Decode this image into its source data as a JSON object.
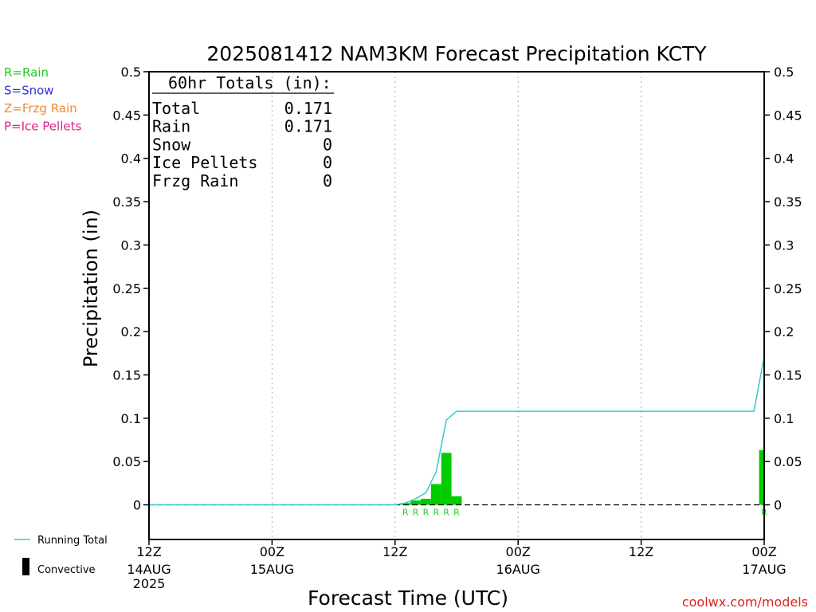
{
  "chart_data": {
    "type": "bar",
    "title": "2025081412 NAM3KM Forecast Precipitation KCTY",
    "xlabel": "Forecast Time (UTC)",
    "ylabel": "Precipitation (in)",
    "ylim": [
      -0.04,
      0.5
    ],
    "yticks": [
      0,
      0.05,
      0.1,
      0.15,
      0.2,
      0.25,
      0.3,
      0.35,
      0.4,
      0.45,
      0.5
    ],
    "ytick_labels": [
      "0",
      "0.05",
      "0.1",
      "0.15",
      "0.2",
      "0.25",
      "0.3",
      "0.35",
      "0.4",
      "0.45",
      "0.5"
    ],
    "xlim": [
      0,
      60
    ],
    "x_unit": "forecast hour",
    "xticks": [
      {
        "hour": 0,
        "line1": "12Z",
        "line2": "14AUG",
        "line3": "2025"
      },
      {
        "hour": 12,
        "line1": "00Z",
        "line2": "15AUG",
        "line3": ""
      },
      {
        "hour": 24,
        "line1": "12Z",
        "line2": "",
        "line3": ""
      },
      {
        "hour": 36,
        "line1": "00Z",
        "line2": "16AUG",
        "line3": ""
      },
      {
        "hour": 48,
        "line1": "12Z",
        "line2": "",
        "line3": ""
      },
      {
        "hour": 60,
        "line1": "00Z",
        "line2": "17AUG",
        "line3": ""
      }
    ],
    "grid": "vertical dotted at 12-hour intervals",
    "bars": [
      {
        "hour": 25,
        "value": 0.002,
        "type": "R"
      },
      {
        "hour": 26,
        "value": 0.005,
        "type": "R"
      },
      {
        "hour": 27,
        "value": 0.007,
        "type": "R"
      },
      {
        "hour": 28,
        "value": 0.024,
        "type": "R"
      },
      {
        "hour": 29,
        "value": 0.06,
        "type": "R"
      },
      {
        "hour": 30,
        "value": 0.01,
        "type": "R"
      },
      {
        "hour": 60,
        "value": 0.063,
        "type": "R"
      }
    ],
    "running_total": {
      "name": "Running Total",
      "points": [
        [
          0,
          0
        ],
        [
          24,
          0
        ],
        [
          25,
          0.002
        ],
        [
          26,
          0.007
        ],
        [
          27,
          0.014
        ],
        [
          28,
          0.038
        ],
        [
          29,
          0.098
        ],
        [
          30,
          0.108
        ],
        [
          59,
          0.108
        ],
        [
          60,
          0.171
        ]
      ]
    },
    "totals_box": {
      "heading": "60hr Totals (in):",
      "rows": [
        {
          "label": "Total",
          "value": "0.171"
        },
        {
          "label": "Rain",
          "value": "0.171"
        },
        {
          "label": "Snow",
          "value": "0"
        },
        {
          "label": "Ice Pellets",
          "value": "0"
        },
        {
          "label": "Frzg Rain",
          "value": "0"
        }
      ]
    },
    "type_legend": [
      {
        "text": "R=Rain",
        "color": "#22cc22"
      },
      {
        "text": "S=Snow",
        "color": "#3333dd"
      },
      {
        "text": "Z=Frzg Rain",
        "color": "#ee8833"
      },
      {
        "text": "P=Ice Pellets",
        "color": "#dd2288"
      }
    ],
    "series_legend": [
      {
        "text": "Running Total",
        "symbol": "line",
        "color": "#33cccc"
      },
      {
        "text": "Convective",
        "symbol": "bar",
        "color": "#000000"
      }
    ],
    "colors": {
      "rain_bar": "#00cc00",
      "running_total": "#33cccc",
      "rain_marker": "#22cc22",
      "credit": "#dd2222"
    },
    "credit": "coolwx.com/models"
  }
}
